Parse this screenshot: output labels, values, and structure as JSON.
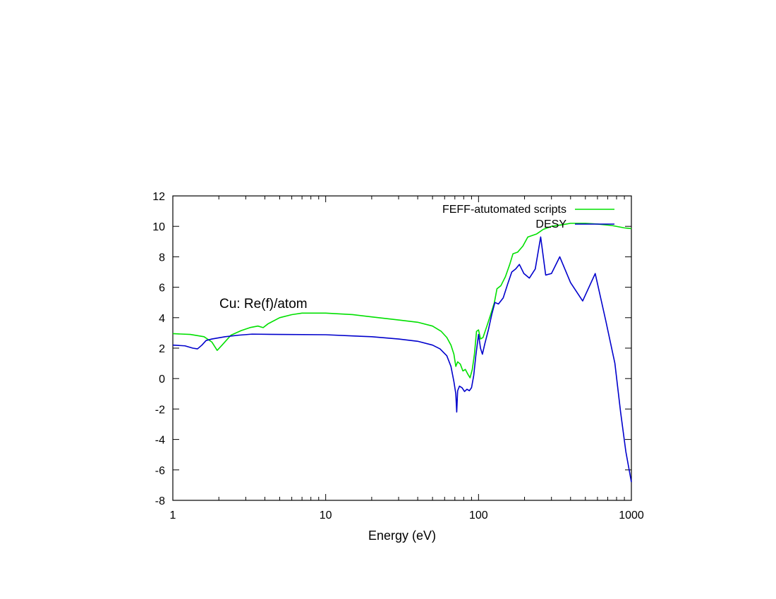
{
  "chart_data": {
    "type": "line",
    "title": "",
    "xlabel": "Energy (eV)",
    "ylabel": "",
    "xscale": "log",
    "xlim": [
      1,
      1000
    ],
    "ylim": [
      -8,
      12
    ],
    "xticks": [
      1,
      10,
      100,
      1000
    ],
    "xtick_labels": [
      "1",
      "10",
      "100",
      "1000"
    ],
    "yticks": [
      -8,
      -6,
      -4,
      -2,
      0,
      2,
      4,
      6,
      8,
      10,
      12
    ],
    "ytick_labels": [
      "-8",
      "-6",
      "-4",
      "-2",
      "0",
      "2",
      "4",
      "6",
      "8",
      "10",
      "12"
    ],
    "grid": false,
    "legend_position": "top-right",
    "annotation": "Cu: Re(f)/atom",
    "series": [
      {
        "name": "FEFF-atutomated scripts",
        "color": "#00e000",
        "points": [
          [
            1.0,
            2.95
          ],
          [
            1.3,
            2.9
          ],
          [
            1.6,
            2.75
          ],
          [
            1.8,
            2.4
          ],
          [
            1.95,
            1.85
          ],
          [
            2.1,
            2.2
          ],
          [
            2.4,
            2.85
          ],
          [
            2.8,
            3.15
          ],
          [
            3.2,
            3.35
          ],
          [
            3.6,
            3.45
          ],
          [
            3.9,
            3.35
          ],
          [
            4.2,
            3.6
          ],
          [
            5.0,
            4.0
          ],
          [
            6.0,
            4.2
          ],
          [
            7.0,
            4.3
          ],
          [
            10.0,
            4.3
          ],
          [
            15.0,
            4.2
          ],
          [
            20.0,
            4.05
          ],
          [
            30.0,
            3.85
          ],
          [
            40.0,
            3.7
          ],
          [
            50.0,
            3.45
          ],
          [
            57.0,
            3.1
          ],
          [
            62.0,
            2.7
          ],
          [
            66.0,
            2.2
          ],
          [
            69.0,
            1.6
          ],
          [
            71.0,
            0.8
          ],
          [
            73.0,
            1.1
          ],
          [
            76.0,
            0.95
          ],
          [
            79.0,
            0.5
          ],
          [
            82.0,
            0.6
          ],
          [
            85.0,
            0.3
          ],
          [
            88.0,
            0.05
          ],
          [
            91.0,
            0.6
          ],
          [
            94.0,
            1.6
          ],
          [
            97.0,
            3.1
          ],
          [
            100.0,
            3.2
          ],
          [
            103.0,
            2.6
          ],
          [
            107.0,
            2.7
          ],
          [
            113.0,
            3.4
          ],
          [
            120.0,
            4.2
          ],
          [
            127.0,
            5.0
          ],
          [
            132.0,
            5.9
          ],
          [
            140.0,
            6.1
          ],
          [
            150.0,
            6.7
          ],
          [
            160.0,
            7.5
          ],
          [
            168.0,
            8.2
          ],
          [
            180.0,
            8.3
          ],
          [
            195.0,
            8.7
          ],
          [
            210.0,
            9.3
          ],
          [
            240.0,
            9.5
          ],
          [
            265.0,
            9.8
          ],
          [
            300.0,
            10.0
          ],
          [
            350.0,
            10.1
          ],
          [
            400.0,
            10.2
          ],
          [
            500.0,
            10.2
          ],
          [
            600.0,
            10.15
          ],
          [
            750.0,
            10.05
          ],
          [
            900.0,
            9.9
          ],
          [
            1000.0,
            9.85
          ]
        ]
      },
      {
        "name": "DESY",
        "color": "#0000cc",
        "points": [
          [
            1.0,
            2.2
          ],
          [
            1.2,
            2.15
          ],
          [
            1.35,
            2.0
          ],
          [
            1.45,
            1.95
          ],
          [
            1.55,
            2.2
          ],
          [
            1.65,
            2.5
          ],
          [
            1.8,
            2.6
          ],
          [
            2.2,
            2.75
          ],
          [
            2.7,
            2.85
          ],
          [
            3.3,
            2.92
          ],
          [
            5.0,
            2.9
          ],
          [
            10.0,
            2.88
          ],
          [
            15.0,
            2.8
          ],
          [
            20.0,
            2.75
          ],
          [
            30.0,
            2.6
          ],
          [
            40.0,
            2.45
          ],
          [
            50.0,
            2.2
          ],
          [
            56.0,
            1.95
          ],
          [
            62.0,
            1.5
          ],
          [
            66.0,
            0.8
          ],
          [
            69.0,
            -0.2
          ],
          [
            71.0,
            -1.0
          ],
          [
            72.0,
            -2.2
          ],
          [
            73.0,
            -0.8
          ],
          [
            75.0,
            -0.5
          ],
          [
            78.0,
            -0.6
          ],
          [
            81.0,
            -0.85
          ],
          [
            84.0,
            -0.7
          ],
          [
            87.0,
            -0.8
          ],
          [
            90.0,
            -0.6
          ],
          [
            93.0,
            0.2
          ],
          [
            96.0,
            1.5
          ],
          [
            100.0,
            2.9
          ],
          [
            103.0,
            2.0
          ],
          [
            106.0,
            1.6
          ],
          [
            110.0,
            2.3
          ],
          [
            116.0,
            3.2
          ],
          [
            122.0,
            4.2
          ],
          [
            128.0,
            5.0
          ],
          [
            135.0,
            4.9
          ],
          [
            145.0,
            5.3
          ],
          [
            155.0,
            6.2
          ],
          [
            165.0,
            7.0
          ],
          [
            175.0,
            7.2
          ],
          [
            185.0,
            7.5
          ],
          [
            198.0,
            6.9
          ],
          [
            215.0,
            6.6
          ],
          [
            235.0,
            7.2
          ],
          [
            255.0,
            9.3
          ],
          [
            275.0,
            6.8
          ],
          [
            300.0,
            6.9
          ],
          [
            340.0,
            8.0
          ],
          [
            400.0,
            6.3
          ],
          [
            480.0,
            5.1
          ],
          [
            580.0,
            6.9
          ],
          [
            680.0,
            3.8
          ],
          [
            780.0,
            1.0
          ],
          [
            850.0,
            -2.2
          ],
          [
            920.0,
            -4.8
          ],
          [
            1000.0,
            -6.8
          ]
        ]
      }
    ]
  }
}
